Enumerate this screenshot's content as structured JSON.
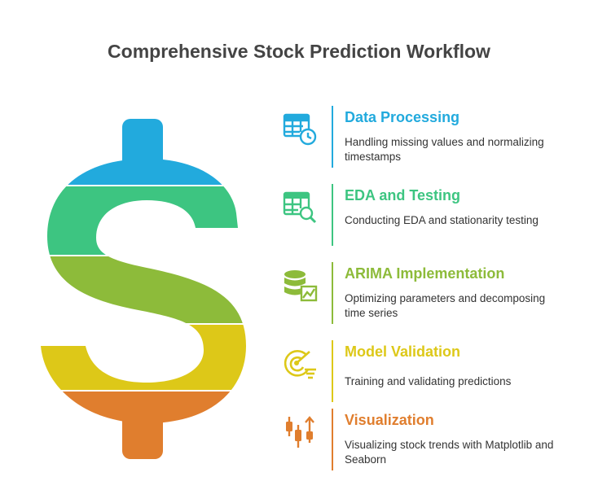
{
  "title": "Comprehensive Stock Prediction Workflow",
  "colors": {
    "blue": "#22AADD",
    "green": "#3DC581",
    "olive": "#8DBB3A",
    "yellow": "#DDC818",
    "orange": "#E07E2E"
  },
  "steps": [
    {
      "title": "Data Processing",
      "description": "Handling missing values and normalizing timestamps",
      "icon": "table-clock-icon",
      "color": "#22AADD"
    },
    {
      "title": "EDA and Testing",
      "description": "Conducting EDA and stationarity testing",
      "icon": "table-search-icon",
      "color": "#3DC581"
    },
    {
      "title": "ARIMA Implementation",
      "description": "Optimizing parameters and decomposing time series",
      "icon": "database-chart-icon",
      "color": "#8DBB3A"
    },
    {
      "title": "Model Validation",
      "description": "Training and validating predictions",
      "icon": "radar-filter-icon",
      "color": "#DDC818"
    },
    {
      "title": "Visualization",
      "description": "Visualizing stock trends with Matplotlib and Seaborn",
      "icon": "candlestick-chart-icon",
      "color": "#E07E2E"
    }
  ]
}
